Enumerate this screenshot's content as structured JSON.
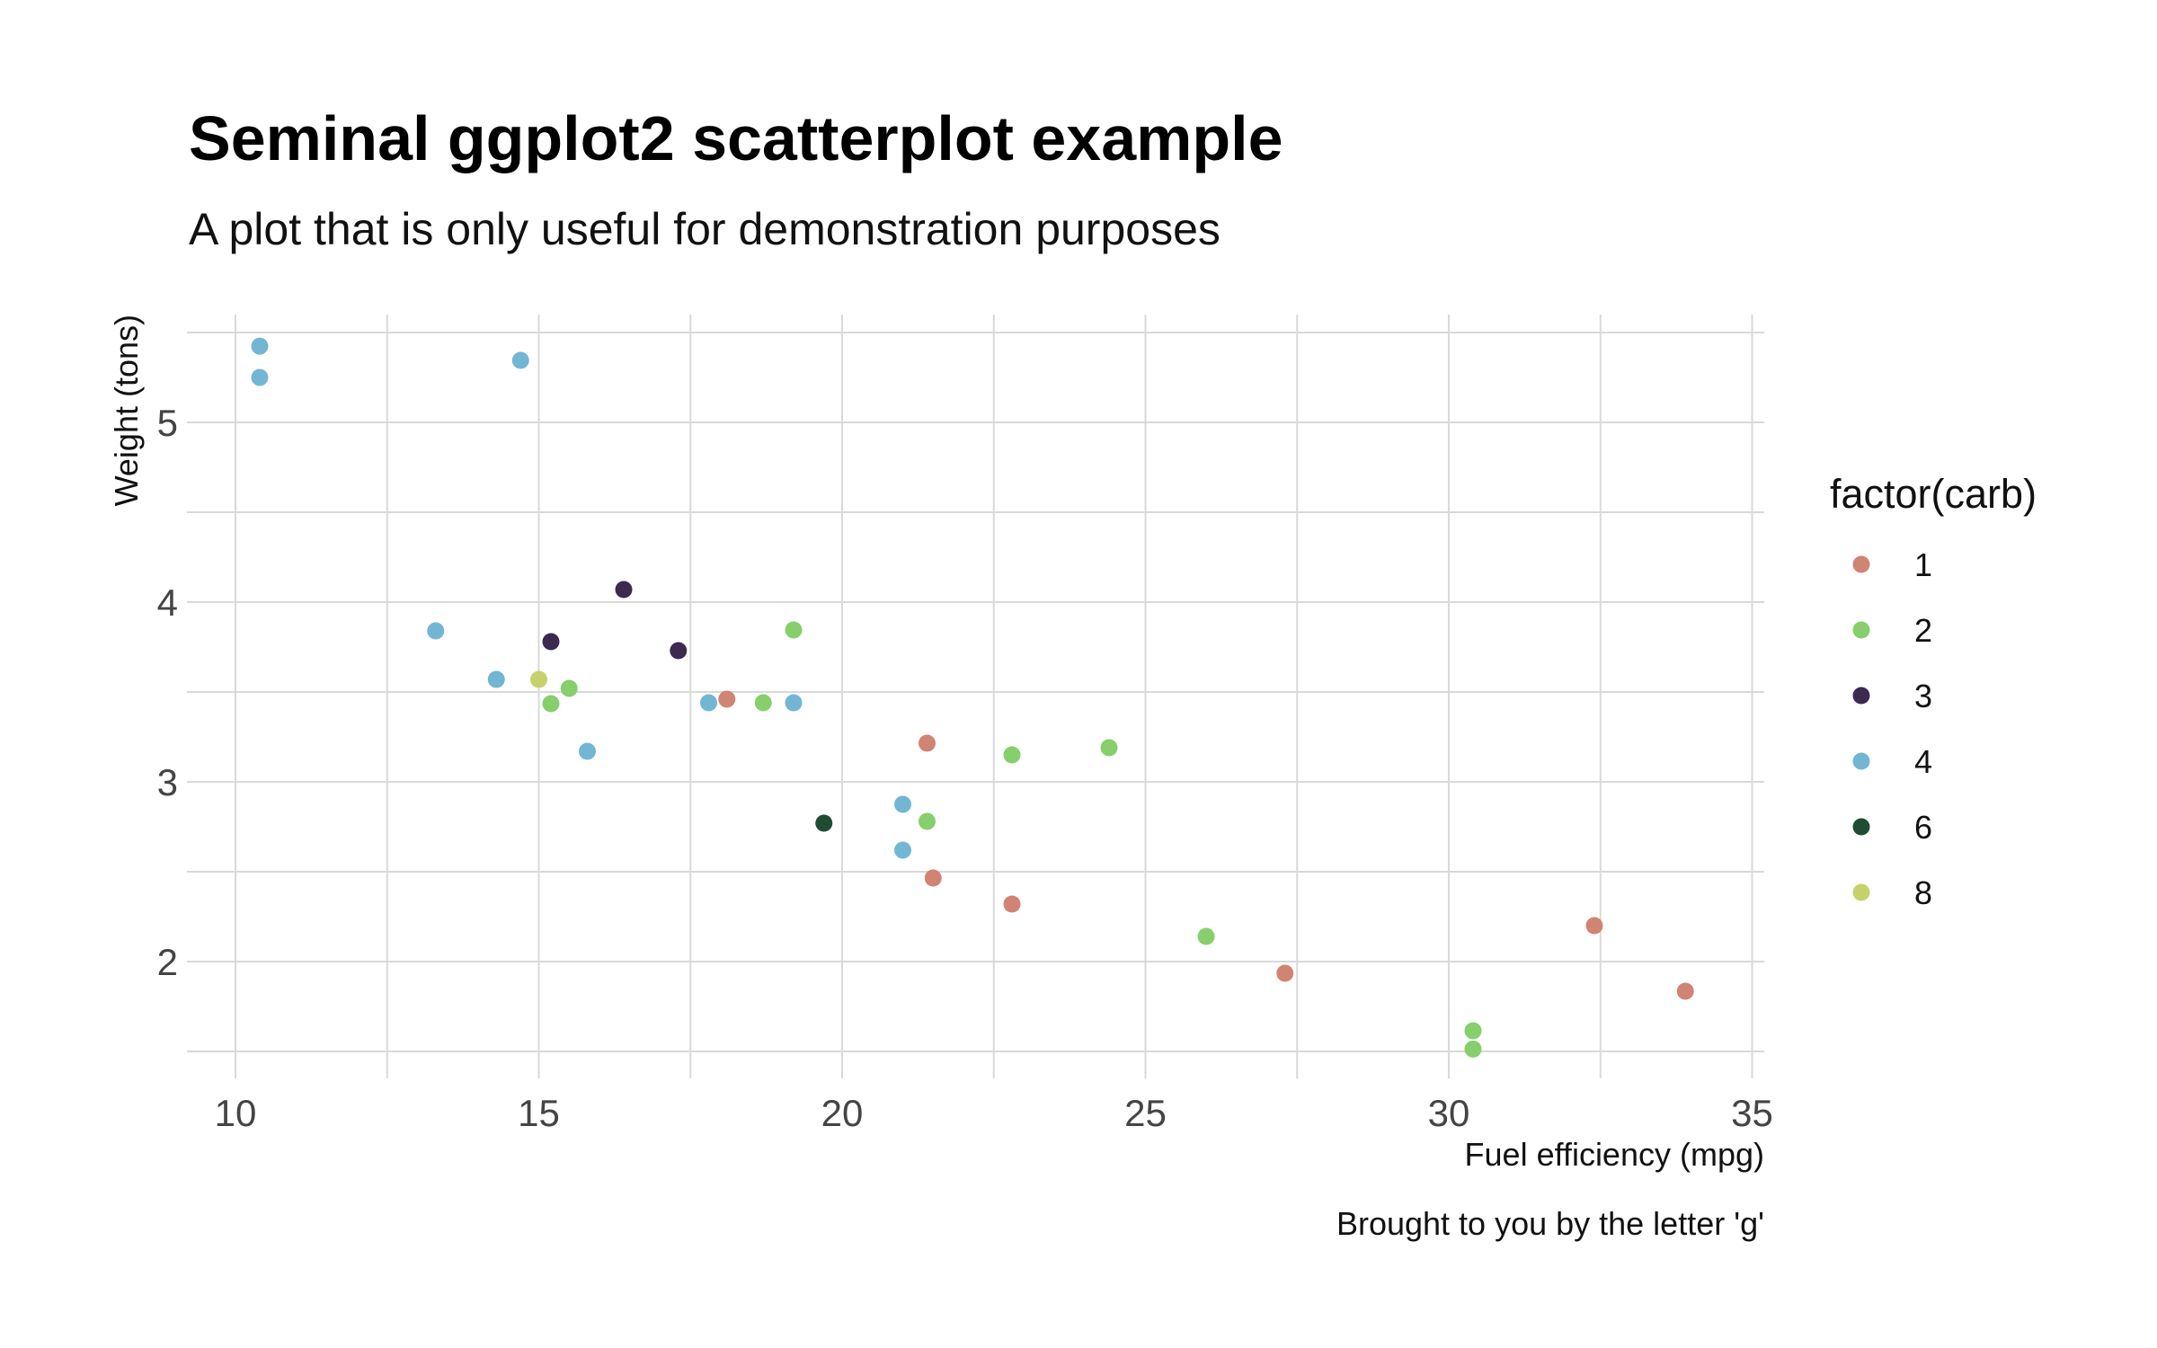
{
  "chart_data": {
    "type": "scatter",
    "title": "Seminal ggplot2 scatterplot example",
    "subtitle": "A plot that is only useful for demonstration purposes",
    "xlabel": "Fuel efficiency (mpg)",
    "ylabel": "Weight (tons)",
    "caption": "Brought to you by the letter 'g'",
    "xlim": [
      9.2,
      35.2
    ],
    "ylim": [
      1.35,
      5.6
    ],
    "x_ticks": [
      "10",
      "15",
      "20",
      "25",
      "30",
      "35"
    ],
    "y_ticks": [
      "2",
      "3",
      "4",
      "5"
    ],
    "grid": true,
    "legend": {
      "title": "factor(carb)",
      "placement": "right",
      "entries": [
        {
          "label": "1",
          "color": "#d08473"
        },
        {
          "label": "2",
          "color": "#86cf6c"
        },
        {
          "label": "3",
          "color": "#3c2a50"
        },
        {
          "label": "4",
          "color": "#72b6d4"
        },
        {
          "label": "6",
          "color": "#1f4d33"
        },
        {
          "label": "8",
          "color": "#c6d16b"
        }
      ]
    },
    "series": [
      {
        "name": "1",
        "points": [
          [
            21.4,
            3.215
          ],
          [
            18.1,
            3.46
          ],
          [
            22.8,
            2.32
          ],
          [
            32.4,
            2.2
          ],
          [
            33.9,
            1.835
          ],
          [
            21.5,
            2.465
          ],
          [
            27.3,
            1.935
          ]
        ]
      },
      {
        "name": "2",
        "points": [
          [
            18.7,
            3.44
          ],
          [
            24.4,
            3.19
          ],
          [
            22.8,
            3.15
          ],
          [
            19.2,
            3.845
          ],
          [
            30.4,
            1.615
          ],
          [
            15.5,
            3.52
          ],
          [
            15.2,
            3.435
          ],
          [
            26.0,
            2.14
          ],
          [
            30.4,
            1.513
          ],
          [
            21.4,
            2.78
          ]
        ]
      },
      {
        "name": "3",
        "points": [
          [
            16.4,
            4.07
          ],
          [
            17.3,
            3.73
          ],
          [
            15.2,
            3.78
          ]
        ]
      },
      {
        "name": "4",
        "points": [
          [
            21.0,
            2.62
          ],
          [
            21.0,
            2.875
          ],
          [
            14.3,
            3.57
          ],
          [
            19.2,
            3.44
          ],
          [
            17.8,
            3.44
          ],
          [
            10.4,
            5.25
          ],
          [
            10.4,
            5.424
          ],
          [
            14.7,
            5.345
          ],
          [
            13.3,
            3.84
          ],
          [
            15.8,
            3.17
          ]
        ]
      },
      {
        "name": "6",
        "points": [
          [
            19.7,
            2.77
          ]
        ]
      },
      {
        "name": "8",
        "points": [
          [
            15.0,
            3.57
          ]
        ]
      }
    ]
  }
}
